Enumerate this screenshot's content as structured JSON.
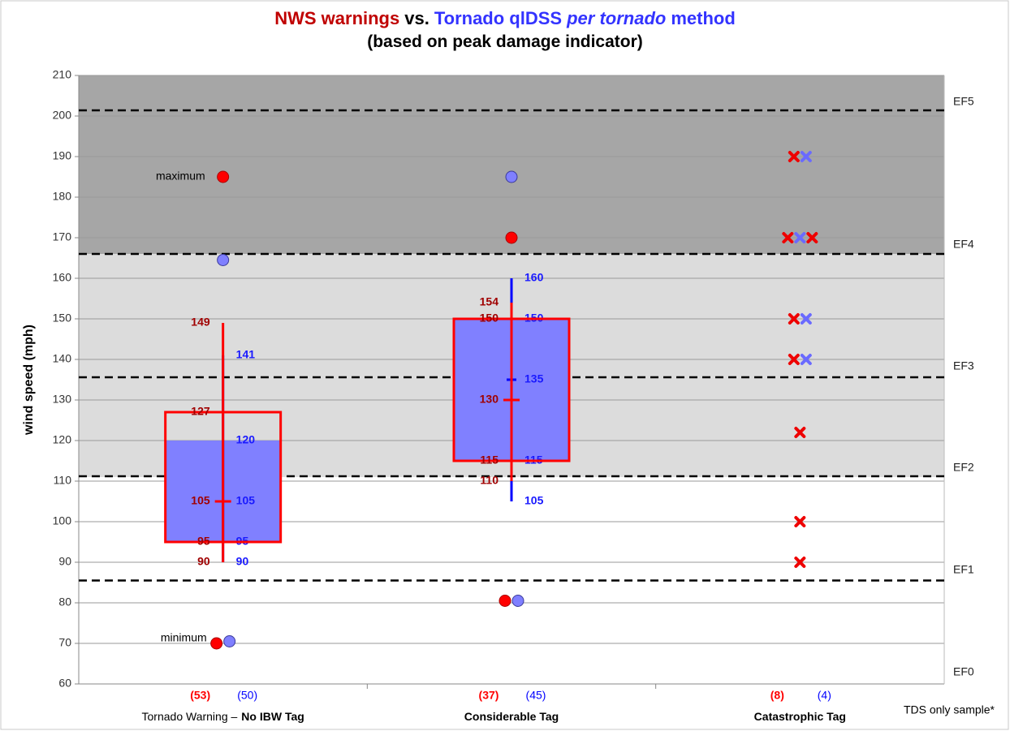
{
  "chart_data": {
    "type": "box",
    "title_parts": [
      {
        "text": "NWS warnings",
        "color": "#c00000"
      },
      {
        "text": "vs.",
        "color": "#000000"
      },
      {
        "text": "Tornado qlDSS",
        "color": "#3333ff"
      },
      {
        "text": "per tornado",
        "color": "#3333ff",
        "italic": true
      },
      {
        "text": "method",
        "color": "#3333ff"
      }
    ],
    "subtitle": "(based on peak damage indicator)",
    "ylabel": "wind speed (mph)",
    "ylim": [
      60,
      210
    ],
    "yticks": [
      60,
      70,
      80,
      90,
      100,
      110,
      120,
      130,
      140,
      150,
      160,
      170,
      180,
      190,
      200,
      210
    ],
    "grid": true,
    "bands": [
      {
        "from": 111,
        "to": 166,
        "color": "#dcdcdc"
      },
      {
        "from": 166,
        "to": 210,
        "color": "#a6a6a6"
      }
    ],
    "ef_lines": [
      85.5,
      111.2,
      135.6,
      166,
      201.4
    ],
    "ef_labels": [
      {
        "label": "EF0",
        "value": 62.8
      },
      {
        "label": "EF1",
        "value": 88
      },
      {
        "label": "EF2",
        "value": 113.2
      },
      {
        "label": "EF3",
        "value": 138.2
      },
      {
        "label": "EF4",
        "value": 168.2
      },
      {
        "label": "EF5",
        "value": 203.4
      }
    ],
    "categories": [
      [
        {
          "text": "Tornado Warning –"
        },
        {
          "text": "No IBW Tag",
          "bold": true
        }
      ],
      [
        {
          "text": "Considerable Tag",
          "bold": true
        }
      ],
      [
        {
          "text": "Catastrophic Tag",
          "bold": true
        }
      ]
    ],
    "max_label": "maximum",
    "min_label": "minimum",
    "footnote": "TDS only sample*",
    "series": [
      {
        "color": "#ff0000",
        "label_color": "#a00000",
        "style": "outline",
        "boxes": [
          {
            "whisker_low": 90,
            "q1": 95,
            "median": 105,
            "q3": 127,
            "whisker_high": 149,
            "max": 185,
            "min": 70
          },
          {
            "whisker_low": 110,
            "q1": 115,
            "median": 130,
            "q3": 150,
            "whisker_high": 154,
            "max": 170,
            "min": 80.5
          },
          null
        ],
        "points": [
          [],
          [],
          [
            190,
            170,
            170,
            150,
            140,
            122,
            100,
            90
          ]
        ],
        "counts": [
          53,
          37,
          8
        ],
        "count_labels": [
          "(53)",
          "(37)",
          "(8)"
        ]
      },
      {
        "color": "#0000ff",
        "fill": "#8080ff",
        "label_color": "#1a1aff",
        "style": "filled",
        "boxes": [
          {
            "whisker_low": 90,
            "q1": 95,
            "median": 105,
            "q3": 120,
            "whisker_high": 141,
            "max": 164.5,
            "min": 70.5
          },
          {
            "whisker_low": 105,
            "q1": 115,
            "median": 135,
            "q3": 150,
            "whisker_high": 160,
            "max": 185,
            "min": 80.5
          },
          null
        ],
        "points": [
          [],
          [],
          [
            190,
            170,
            150,
            140
          ]
        ],
        "counts": [
          50,
          45,
          4
        ],
        "count_labels": [
          "(50)",
          "(45)",
          "(4)"
        ]
      }
    ]
  }
}
